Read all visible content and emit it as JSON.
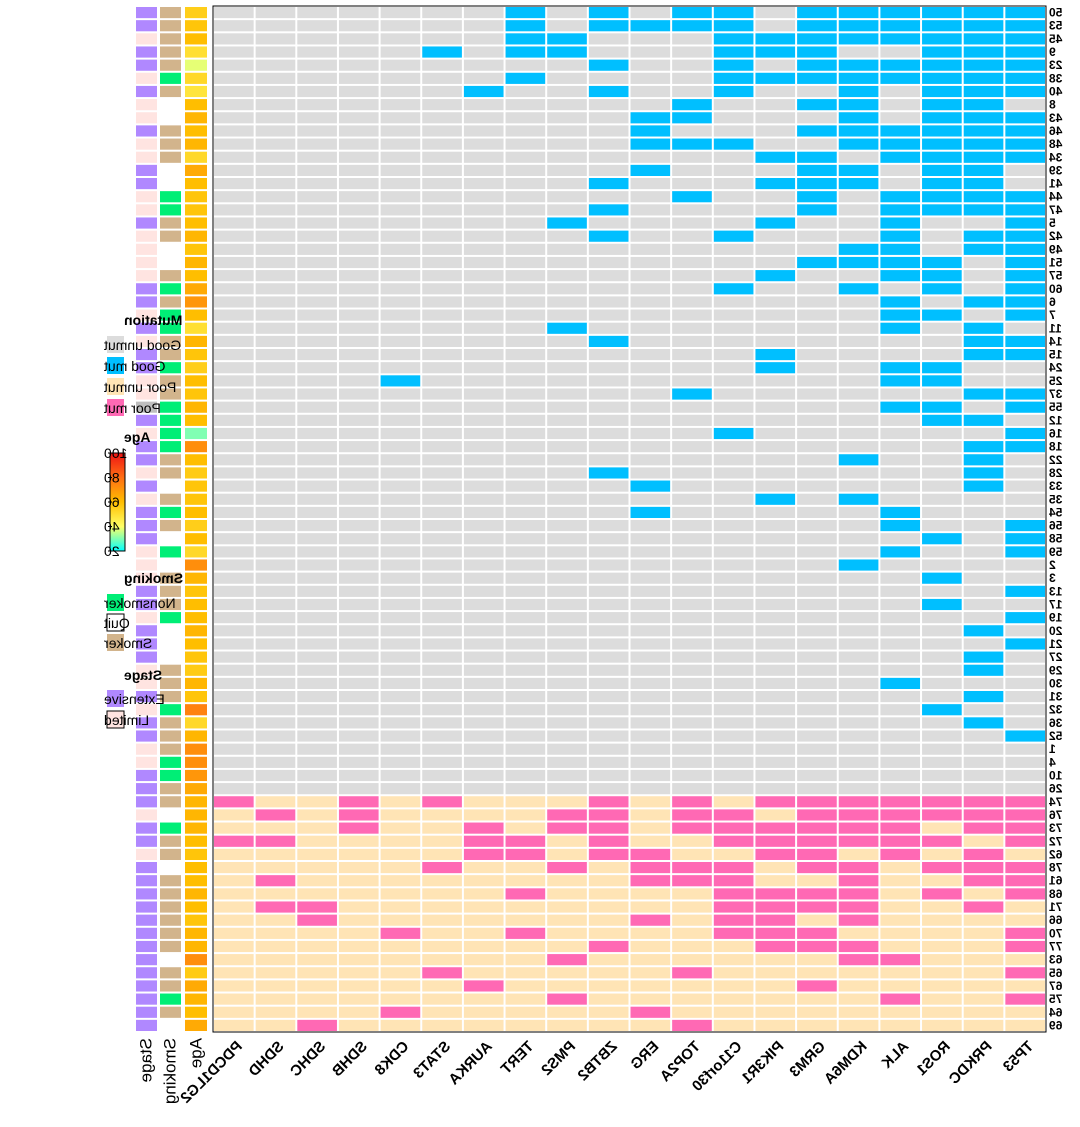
{
  "chart_data": {
    "type": "heatmap",
    "genes": [
      "TP53",
      "PRKDC",
      "ROS1",
      "ALK",
      "KDM6A",
      "GRM3",
      "PIK3R1",
      "C11orf30",
      "TOP2A",
      "ERG",
      "ZBTB2",
      "PMS2",
      "TERT",
      "AURKA",
      "STAT3",
      "CDK8",
      "SDHB",
      "SDHC",
      "SDHD",
      "PDCD1LG2"
    ],
    "samples": [
      "50",
      "53",
      "45",
      "9",
      "23",
      "38",
      "40",
      "8",
      "43",
      "46",
      "48",
      "34",
      "39",
      "41",
      "44",
      "47",
      "5",
      "42",
      "49",
      "51",
      "57",
      "60",
      "6",
      "7",
      "11",
      "14",
      "15",
      "24",
      "25",
      "37",
      "55",
      "12",
      "16",
      "18",
      "22",
      "28",
      "33",
      "35",
      "54",
      "56",
      "58",
      "59",
      "2",
      "3",
      "13",
      "17",
      "19",
      "20",
      "21",
      "27",
      "29",
      "30",
      "31",
      "32",
      "36",
      "52",
      "1",
      "4",
      "10",
      "26",
      "74",
      "76",
      "73",
      "72",
      "62",
      "78",
      "61",
      "68",
      "71",
      "66",
      "70",
      "77",
      "63",
      "65",
      "67",
      "75",
      "64",
      "69"
    ],
    "groups": {
      "poor_start_index": 60
    },
    "mutations": {
      "50": [
        "TP53",
        "PRKDC",
        "ROS1",
        "ALK",
        "KDM6A",
        "GRM3",
        "C11orf30",
        "TOP2A",
        "ZBTB2",
        "TERT"
      ],
      "53": [
        "TP53",
        "PRKDC",
        "ROS1",
        "ALK",
        "KDM6A",
        "GRM3",
        "C11orf30",
        "TOP2A",
        "ERG",
        "ZBTB2",
        "TERT"
      ],
      "45": [
        "TP53",
        "PRKDC",
        "ROS1",
        "ALK",
        "KDM6A",
        "GRM3",
        "PIK3R1",
        "C11orf30",
        "PMS2",
        "TERT"
      ],
      "9": [
        "TP53",
        "PRKDC",
        "ROS1",
        "GRM3",
        "PIK3R1",
        "C11orf30",
        "PMS2",
        "TERT",
        "STAT3"
      ],
      "23": [
        "TP53",
        "PRKDC",
        "ROS1",
        "ALK",
        "KDM6A",
        "GRM3",
        "C11orf30",
        "ZBTB2"
      ],
      "38": [
        "TP53",
        "PRKDC",
        "ROS1",
        "ALK",
        "KDM6A",
        "GRM3",
        "PIK3R1",
        "C11orf30",
        "TERT"
      ],
      "40": [
        "TP53",
        "PRKDC",
        "ROS1",
        "KDM6A",
        "C11orf30",
        "ZBTB2",
        "AURKA"
      ],
      "8": [
        "PRKDC",
        "ROS1",
        "KDM6A",
        "GRM3",
        "TOP2A"
      ],
      "43": [
        "TP53",
        "PRKDC",
        "ROS1",
        "KDM6A",
        "TOP2A",
        "ERG"
      ],
      "46": [
        "TP53",
        "PRKDC",
        "ROS1",
        "ALK",
        "KDM6A",
        "GRM3",
        "ERG"
      ],
      "48": [
        "TP53",
        "PRKDC",
        "ROS1",
        "ALK",
        "KDM6A",
        "C11orf30",
        "TOP2A",
        "ERG"
      ],
      "34": [
        "TP53",
        "PRKDC",
        "ROS1",
        "ALK",
        "GRM3",
        "PIK3R1"
      ],
      "39": [
        "PRKDC",
        "ROS1",
        "KDM6A",
        "GRM3",
        "ERG"
      ],
      "41": [
        "PRKDC",
        "ROS1",
        "KDM6A",
        "GRM3",
        "PIK3R1",
        "ZBTB2"
      ],
      "44": [
        "TP53",
        "PRKDC",
        "ROS1",
        "ALK",
        "GRM3",
        "TOP2A"
      ],
      "47": [
        "TP53",
        "PRKDC",
        "ROS1",
        "ALK",
        "GRM3",
        "ZBTB2"
      ],
      "5": [
        "TP53",
        "ALK",
        "PIK3R1",
        "PMS2"
      ],
      "42": [
        "TP53",
        "PRKDC",
        "ALK",
        "C11orf30",
        "ZBTB2"
      ],
      "49": [
        "TP53",
        "PRKDC",
        "ALK",
        "KDM6A"
      ],
      "51": [
        "TP53",
        "ROS1",
        "ALK",
        "KDM6A",
        "GRM3"
      ],
      "57": [
        "TP53",
        "ROS1",
        "ALK",
        "PIK3R1"
      ],
      "60": [
        "TP53",
        "ROS1",
        "KDM6A",
        "C11orf30"
      ],
      "6": [
        "TP53",
        "PRKDC",
        "ALK"
      ],
      "7": [
        "TP53",
        "ROS1",
        "ALK"
      ],
      "11": [
        "PRKDC",
        "ALK",
        "PMS2"
      ],
      "14": [
        "TP53",
        "PRKDC",
        "ZBTB2"
      ],
      "15": [
        "TP53",
        "PRKDC",
        "PIK3R1"
      ],
      "24": [
        "ROS1",
        "ALK",
        "PIK3R1"
      ],
      "25": [
        "ROS1",
        "ALK",
        "CDK8"
      ],
      "37": [
        "TP53",
        "PRKDC",
        "TOP2A"
      ],
      "55": [
        "TP53",
        "ROS1",
        "ALK"
      ],
      "12": [
        "PRKDC",
        "ROS1"
      ],
      "16": [
        "TP53",
        "C11orf30"
      ],
      "18": [
        "TP53",
        "PRKDC"
      ],
      "22": [
        "PRKDC",
        "KDM6A"
      ],
      "28": [
        "PRKDC",
        "ZBTB2"
      ],
      "33": [
        "PRKDC",
        "ERG"
      ],
      "35": [
        "KDM6A",
        "PIK3R1"
      ],
      "54": [
        "ALK",
        "ERG"
      ],
      "56": [
        "TP53",
        "ALK"
      ],
      "58": [
        "TP53",
        "ROS1"
      ],
      "59": [
        "TP53",
        "ALK"
      ],
      "2": [
        "KDM6A"
      ],
      "3": [
        "ROS1"
      ],
      "13": [
        "TP53"
      ],
      "17": [
        "ROS1"
      ],
      "19": [
        "TP53"
      ],
      "20": [
        "PRKDC"
      ],
      "21": [
        "TP53"
      ],
      "27": [
        "PRKDC"
      ],
      "29": [
        "PRKDC"
      ],
      "30": [
        "ALK"
      ],
      "31": [
        "PRKDC"
      ],
      "32": [
        "ROS1"
      ],
      "36": [
        "PRKDC"
      ],
      "52": [
        "TP53"
      ],
      "1": [],
      "4": [],
      "10": [],
      "26": [],
      "74": [
        "TP53",
        "PRKDC",
        "ROS1",
        "ALK",
        "KDM6A",
        "GRM3",
        "PIK3R1",
        "TOP2A",
        "ZBTB2",
        "STAT3",
        "SDHB",
        "PDCD1LG2"
      ],
      "76": [
        "TP53",
        "PRKDC",
        "ROS1",
        "ALK",
        "KDM6A",
        "GRM3",
        "C11orf30",
        "TOP2A",
        "ZBTB2",
        "PMS2",
        "SDHB",
        "SDHD"
      ],
      "73": [
        "TP53",
        "PRKDC",
        "ALK",
        "KDM6A",
        "GRM3",
        "PIK3R1",
        "C11orf30",
        "TOP2A",
        "ZBTB2",
        "PMS2",
        "AURKA",
        "SDHB"
      ],
      "72": [
        "TP53",
        "ROS1",
        "ALK",
        "KDM6A",
        "GRM3",
        "PIK3R1",
        "C11orf30",
        "ZBTB2",
        "TERT",
        "AURKA",
        "SDHD",
        "PDCD1LG2"
      ],
      "62": [
        "PRKDC",
        "ALK",
        "GRM3",
        "PIK3R1",
        "ERG",
        "ZBTB2",
        "TERT",
        "AURKA"
      ],
      "78": [
        "TP53",
        "PRKDC",
        "ROS1",
        "KDM6A",
        "GRM3",
        "C11orf30",
        "TOP2A",
        "ERG",
        "PMS2",
        "STAT3"
      ],
      "61": [
        "TP53",
        "PRKDC",
        "KDM6A",
        "C11orf30",
        "TOP2A",
        "ERG",
        "SDHD"
      ],
      "68": [
        "TP53",
        "ROS1",
        "KDM6A",
        "GRM3",
        "PIK3R1",
        "C11orf30",
        "TERT"
      ],
      "71": [
        "PRKDC",
        "KDM6A",
        "GRM3",
        "PIK3R1",
        "C11orf30",
        "SDHC",
        "SDHD"
      ],
      "66": [
        "KDM6A",
        "PIK3R1",
        "C11orf30",
        "ERG",
        "SDHC"
      ],
      "70": [
        "TP53",
        "GRM3",
        "PIK3R1",
        "C11orf30",
        "TERT",
        "CDK8"
      ],
      "77": [
        "TP53",
        "KDM6A",
        "GRM3",
        "PIK3R1",
        "ZBTB2"
      ],
      "63": [
        "ALK",
        "KDM6A",
        "PMS2"
      ],
      "65": [
        "TP53",
        "TOP2A",
        "STAT3"
      ],
      "67": [
        "GRM3",
        "AURKA"
      ],
      "75": [
        "TP53",
        "ALK",
        "PMS2"
      ],
      "64": [
        "ERG",
        "CDK8"
      ],
      "69": [
        "TOP2A",
        "SDHC"
      ]
    },
    "age": {
      "50": 55,
      "53": 58,
      "45": 60,
      "9": 50,
      "23": 38,
      "38": 52,
      "40": 48,
      "8": 60,
      "43": 62,
      "46": 60,
      "48": 62,
      "34": 52,
      "39": 65,
      "41": 60,
      "44": 58,
      "47": 58,
      "5": 60,
      "42": 62,
      "49": 58,
      "51": 62,
      "57": 60,
      "60": 65,
      "6": 70,
      "7": 60,
      "11": 50,
      "14": 62,
      "15": 58,
      "24": 55,
      "25": 60,
      "37": 58,
      "55": 62,
      "12": 60,
      "16": 30,
      "18": 72,
      "22": 60,
      "28": 56,
      "33": 58,
      "35": 58,
      "54": 60,
      "56": 55,
      "58": 60,
      "59": 52,
      "2": 72,
      "3": 62,
      "13": 58,
      "17": 60,
      "19": 60,
      "20": 62,
      "21": 60,
      "27": 58,
      "29": 56,
      "30": 62,
      "31": 58,
      "32": 75,
      "36": 52,
      "52": 62,
      "1": 72,
      "4": 72,
      "10": 70,
      "26": 65,
      "74": 62,
      "76": 62,
      "73": 62,
      "72": 60,
      "62": 58,
      "78": 60,
      "61": 60,
      "68": 62,
      "71": 60,
      "66": 58,
      "70": 62,
      "77": 62,
      "63": 72,
      "65": 56,
      "67": 65,
      "75": 62,
      "64": 60,
      "69": 65
    },
    "smoking": {
      "50": "Smoker",
      "53": "Smoker",
      "45": "Smoker",
      "9": "Smoker",
      "23": "Smoker",
      "38": "Nonsmoker",
      "40": "Smoker",
      "8": "Quit",
      "43": "Quit",
      "46": "Smoker",
      "48": "Smoker",
      "34": "Smoker",
      "39": "Quit",
      "41": "Quit",
      "44": "Nonsmoker",
      "47": "Nonsmoker",
      "5": "Smoker",
      "42": "Smoker",
      "49": "Quit",
      "51": "Quit",
      "57": "Smoker",
      "60": "Nonsmoker",
      "6": "Smoker",
      "7": "Nonsmoker",
      "11": "Nonsmoker",
      "14": "Smoker",
      "15": "Smoker",
      "24": "Nonsmoker",
      "25": "Smoker",
      "37": "Smoker",
      "55": "Nonsmoker",
      "12": "Nonsmoker",
      "16": "Nonsmoker",
      "18": "Nonsmoker",
      "22": "Smoker",
      "28": "Smoker",
      "33": "Quit",
      "35": "Smoker",
      "54": "Nonsmoker",
      "56": "Smoker",
      "58": "Quit",
      "59": "Nonsmoker",
      "2": "Quit",
      "3": "Smoker",
      "13": "Smoker",
      "17": "Smoker",
      "19": "Nonsmoker",
      "20": "Quit",
      "21": "Quit",
      "27": "Quit",
      "29": "Smoker",
      "30": "Smoker",
      "31": "Smoker",
      "32": "Nonsmoker",
      "36": "Smoker",
      "52": "Smoker",
      "1": "Smoker",
      "4": "Nonsmoker",
      "10": "Nonsmoker",
      "26": "Smoker",
      "74": "Smoker",
      "76": "Quit",
      "73": "Nonsmoker",
      "72": "Smoker",
      "62": "Smoker",
      "78": "Quit",
      "61": "Smoker",
      "68": "Smoker",
      "71": "Smoker",
      "66": "Smoker",
      "70": "Smoker",
      "77": "Smoker",
      "63": "Quit",
      "65": "Smoker",
      "67": "Smoker",
      "75": "Nonsmoker",
      "64": "Smoker",
      "69": "Quit"
    },
    "stage": {
      "50": "Extensive",
      "53": "Extensive",
      "45": "Limited",
      "9": "Extensive",
      "23": "Extensive",
      "38": "Limited",
      "40": "Extensive",
      "8": "Limited",
      "43": "Limited",
      "46": "Extensive",
      "48": "Limited",
      "34": "Limited",
      "39": "Extensive",
      "41": "Extensive",
      "44": "Limited",
      "47": "Limited",
      "5": "Extensive",
      "42": "Limited",
      "49": "Limited",
      "51": "Limited",
      "57": "Limited",
      "60": "Extensive",
      "6": "Extensive",
      "7": "Limited",
      "11": "Extensive",
      "14": "Limited",
      "15": "Extensive",
      "24": "Extensive",
      "25": "Limited",
      "37": "Limited",
      "55": "NA",
      "12": "Extensive",
      "16": "Limited",
      "18": "Extensive",
      "22": "Extensive",
      "28": "Limited",
      "33": "Extensive",
      "35": "Limited",
      "54": "Extensive",
      "56": "Extensive",
      "58": "Extensive",
      "59": "Limited",
      "2": "Limited",
      "3": "Limited",
      "13": "Extensive",
      "17": "Extensive",
      "19": "Limited",
      "20": "Extensive",
      "21": "Extensive",
      "27": "Extensive",
      "29": "Limited",
      "30": "Limited",
      "31": "Extensive",
      "32": "Limited",
      "36": "Extensive",
      "52": "Extensive",
      "1": "Limited",
      "4": "Limited",
      "10": "Extensive",
      "26": "Extensive",
      "74": "Extensive",
      "76": "Limited",
      "73": "Extensive",
      "72": "Extensive",
      "62": "Limited",
      "78": "Extensive",
      "61": "Extensive",
      "68": "Extensive",
      "71": "Extensive",
      "66": "Extensive",
      "70": "Extensive",
      "77": "Extensive",
      "63": "Extensive",
      "65": "Extensive",
      "67": "Extensive",
      "75": "Extensive",
      "64": "Extensive",
      "69": "Extensive"
    },
    "annotation_labels": [
      "Age",
      "Smoking",
      "Stage"
    ],
    "legend": {
      "mutation": {
        "title": "Mutation",
        "items": [
          {
            "label": "Good unmut",
            "color": "#DCDCDC"
          },
          {
            "label": "Good mut",
            "color": "#00BFFF"
          },
          {
            "label": "Poor unmut",
            "color": "#FFE4B5"
          },
          {
            "label": "Poor mut",
            "color": "#FF69B4"
          }
        ]
      },
      "age": {
        "title": "Age",
        "ticks": [
          100,
          80,
          60,
          40,
          20
        ],
        "range": [
          20,
          100
        ]
      },
      "smoking": {
        "title": "Smoking",
        "items": [
          {
            "label": "Nonsmoker",
            "color": "#00EE76"
          },
          {
            "label": "Quit",
            "color": "#FFFFFF"
          },
          {
            "label": "Smoker",
            "color": "#D2B48C"
          }
        ]
      },
      "stage": {
        "title": "Stage",
        "items": [
          {
            "label": "Extensive",
            "color": "#B088FF"
          },
          {
            "label": "Limited",
            "color": "#FFE4E1"
          }
        ]
      }
    },
    "na_color": "#BEBEBE",
    "colors": {
      "good_unmut": "#DCDCDC",
      "good_mut": "#00BFFF",
      "poor_unmut": "#FFE4B5",
      "poor_mut": "#FF69B4"
    }
  }
}
